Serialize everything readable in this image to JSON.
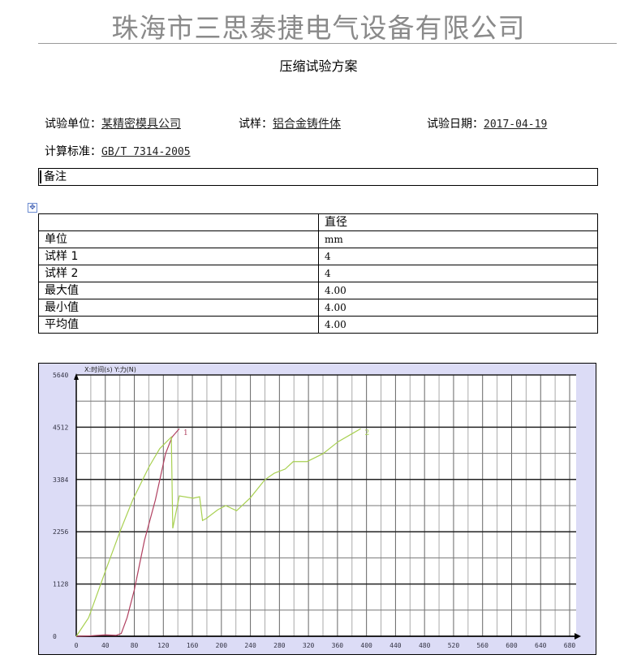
{
  "company": "珠海市三思泰捷电气设备有限公司",
  "title": "压缩试验方案",
  "fields": {
    "unit_label": "试验单位：",
    "unit_value": "某精密模具公司",
    "sample_label": "试样：",
    "sample_value": "铝合金铸件体",
    "date_label": "试验日期：",
    "date_value": "2017-04-19",
    "standard_label": "计算标准：",
    "standard_value": "GB/T 7314-2005"
  },
  "remark_label": "备注",
  "table": {
    "header": [
      "",
      "直径"
    ],
    "rows": [
      [
        "单位",
        "mm"
      ],
      [
        "试样 1",
        "4"
      ],
      [
        "试样 2",
        "4"
      ],
      [
        "最大值",
        "4.00"
      ],
      [
        "最小值",
        "4.00"
      ],
      [
        "平均值",
        "4.00"
      ]
    ]
  },
  "chart_data": {
    "type": "line",
    "axis_header": "X:时间(s)   Y:力(N)",
    "xlim": [
      0,
      680
    ],
    "ylim": [
      0,
      5640
    ],
    "xticks": [
      0,
      40,
      80,
      120,
      160,
      200,
      240,
      280,
      320,
      360,
      400,
      440,
      480,
      520,
      560,
      600,
      640,
      680
    ],
    "yticks": [
      0,
      1128,
      2256,
      3384,
      4512,
      5640
    ],
    "grid": true,
    "series": [
      {
        "name": "1",
        "color": "#b04060",
        "points": [
          [
            0,
            0
          ],
          [
            20,
            10
          ],
          [
            40,
            30
          ],
          [
            55,
            20
          ],
          [
            62,
            60
          ],
          [
            70,
            400
          ],
          [
            80,
            1000
          ],
          [
            94,
            2070
          ],
          [
            109,
            2940
          ],
          [
            123,
            3940
          ],
          [
            132,
            4300
          ],
          [
            142,
            4480
          ]
        ]
      },
      {
        "name": "2",
        "color": "#a8d050",
        "points": [
          [
            0,
            0
          ],
          [
            17,
            400
          ],
          [
            40,
            1400
          ],
          [
            60,
            2250
          ],
          [
            78,
            2950
          ],
          [
            100,
            3650
          ],
          [
            115,
            4050
          ],
          [
            131,
            4300
          ],
          [
            133,
            2330
          ],
          [
            142,
            3030
          ],
          [
            161,
            2980
          ],
          [
            170,
            3010
          ],
          [
            174,
            2500
          ],
          [
            179,
            2540
          ],
          [
            195,
            2730
          ],
          [
            206,
            2820
          ],
          [
            221,
            2710
          ],
          [
            240,
            2990
          ],
          [
            260,
            3380
          ],
          [
            273,
            3520
          ],
          [
            288,
            3610
          ],
          [
            299,
            3770
          ],
          [
            318,
            3770
          ],
          [
            340,
            3940
          ],
          [
            361,
            4200
          ],
          [
            381,
            4380
          ],
          [
            392,
            4480
          ]
        ]
      }
    ]
  }
}
